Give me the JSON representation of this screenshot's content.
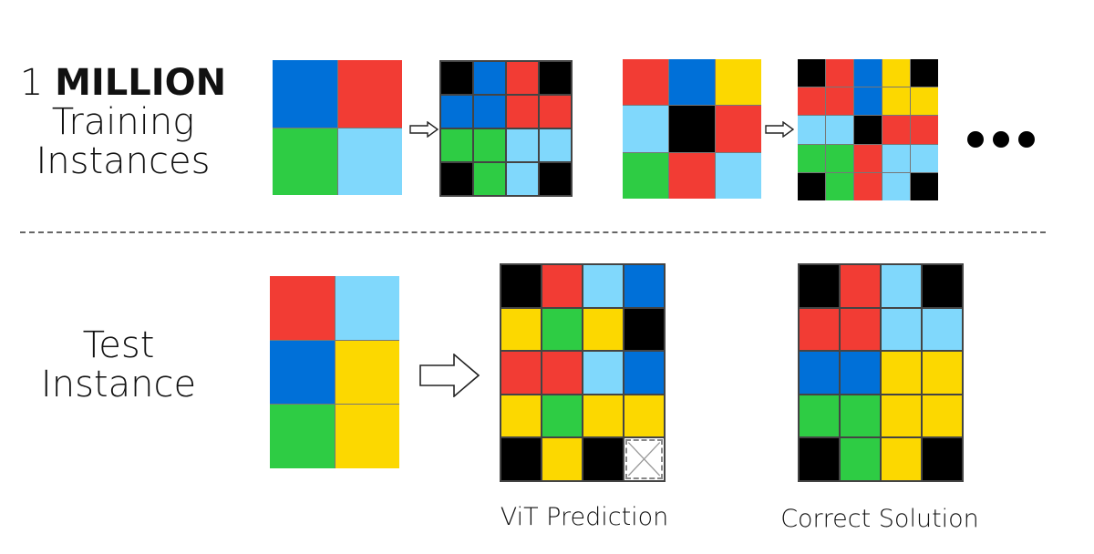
{
  "colors": {
    "K": "#000000",
    "B": "#0070d8",
    "R": "#f23c34",
    "G": "#2ecc44",
    "L": "#80d8fc",
    "Y": "#fcd800",
    "X": "missing"
  },
  "training": {
    "label_count": "1",
    "label_bold": "MILLION",
    "label_line2": "Training",
    "label_line3": "Instances",
    "ellipsis_icon": "ellipsis-icon",
    "examples": [
      {
        "input": [
          [
            "B",
            "R"
          ],
          [
            "G",
            "L"
          ]
        ],
        "output": [
          [
            "K",
            "B",
            "R",
            "K"
          ],
          [
            "B",
            "B",
            "R",
            "R"
          ],
          [
            "G",
            "G",
            "L",
            "L"
          ],
          [
            "K",
            "G",
            "L",
            "K"
          ]
        ]
      },
      {
        "input": [
          [
            "R",
            "B",
            "Y"
          ],
          [
            "L",
            "K",
            "R"
          ],
          [
            "G",
            "R",
            "L"
          ]
        ],
        "output": [
          [
            "K",
            "R",
            "B",
            "Y",
            "K"
          ],
          [
            "R",
            "R",
            "B",
            "Y",
            "Y"
          ],
          [
            "L",
            "L",
            "K",
            "R",
            "R"
          ],
          [
            "G",
            "G",
            "R",
            "L",
            "L"
          ],
          [
            "K",
            "G",
            "R",
            "L",
            "K"
          ]
        ]
      }
    ]
  },
  "test": {
    "label_line1": "Test",
    "label_line2": "Instance",
    "input": [
      [
        "R",
        "L"
      ],
      [
        "B",
        "Y"
      ],
      [
        "G",
        "Y"
      ]
    ],
    "vit_caption": "ViT Prediction",
    "vit_prediction": [
      [
        "K",
        "R",
        "L",
        "B"
      ],
      [
        "Y",
        "G",
        "Y",
        "K"
      ],
      [
        "R",
        "R",
        "L",
        "B"
      ],
      [
        "Y",
        "G",
        "Y",
        "Y"
      ],
      [
        "K",
        "Y",
        "K",
        "X"
      ]
    ],
    "correct_caption": "Correct Solution",
    "correct_solution": [
      [
        "K",
        "R",
        "L",
        "K"
      ],
      [
        "R",
        "R",
        "L",
        "L"
      ],
      [
        "B",
        "B",
        "Y",
        "Y"
      ],
      [
        "G",
        "G",
        "Y",
        "Y"
      ],
      [
        "K",
        "G",
        "Y",
        "K"
      ]
    ]
  }
}
